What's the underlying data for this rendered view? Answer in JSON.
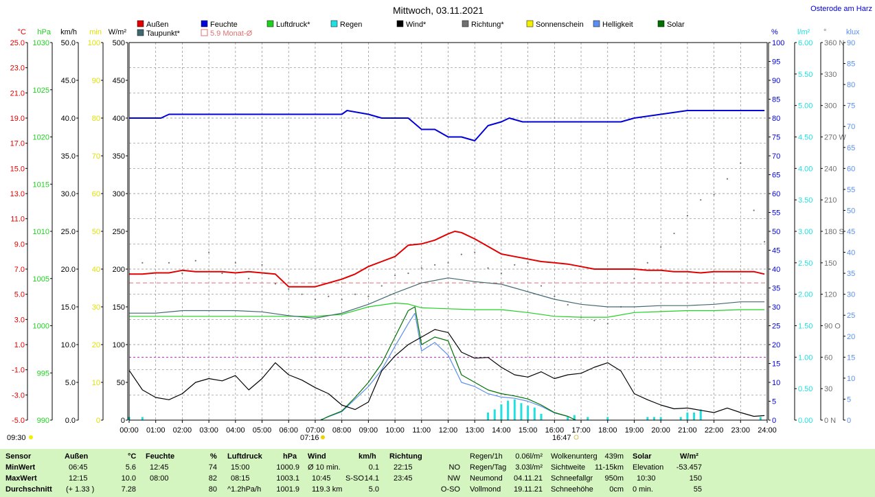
{
  "header": {
    "title": "Mittwoch, 03.11.2021",
    "location": "Osterode am Harz"
  },
  "colors": {
    "aussen": "#e00000",
    "feuchte": "#0000d8",
    "luftdruck": "#20d020",
    "regen": "#20e0e0",
    "wind": "#000000",
    "richtung": "#707070",
    "sonnenschein": "#f0f000",
    "helligkeit": "#5a8ff0",
    "solar": "#007000",
    "taupunkt": "#406870",
    "monat": "#e07070"
  },
  "legend": [
    {
      "label": "Außen",
      "color": "#e00000",
      "fill": true
    },
    {
      "label": "Feuchte",
      "color": "#0000d8",
      "fill": true
    },
    {
      "label": "Luftdruck*",
      "color": "#20d020",
      "fill": true
    },
    {
      "label": "Regen",
      "color": "#20e0e0",
      "fill": true
    },
    {
      "label": "Wind*",
      "color": "#000000",
      "fill": true
    },
    {
      "label": "Richtung*",
      "color": "#707070",
      "fill": true
    },
    {
      "label": "Sonnenschein",
      "color": "#f0f000",
      "fill": true
    },
    {
      "label": "Helligkeit",
      "color": "#5a8ff0",
      "fill": true
    },
    {
      "label": "Solar",
      "color": "#007000",
      "fill": true
    },
    {
      "label": "Taupunkt*",
      "color": "#406870",
      "fill": true
    },
    {
      "label": "5.9 Monat-Ø",
      "color": "#e07070",
      "fill": false
    }
  ],
  "axes_left": [
    {
      "unit": "°C",
      "color": "#e00000",
      "ticks": [
        "25.0",
        "23.0",
        "21.0",
        "19.0",
        "17.0",
        "15.0",
        "13.0",
        "11.0",
        "9.0",
        "7.0",
        "5.0",
        "3.0",
        "1.0",
        "-1.0",
        "-3.0",
        "-5.0"
      ]
    },
    {
      "unit": "hPa",
      "color": "#20d020",
      "ticks": [
        "1030",
        "1025",
        "1020",
        "1015",
        "1010",
        "1005",
        "1000",
        "995",
        "990"
      ]
    },
    {
      "unit": "km/h",
      "color": "#000000",
      "ticks": [
        "50.0",
        "45.0",
        "40.0",
        "35.0",
        "30.0",
        "25.0",
        "20.0",
        "15.0",
        "10.0",
        "5.0",
        "0.0"
      ]
    },
    {
      "unit": "min",
      "color": "#e0e000",
      "ticks": [
        "100",
        "90",
        "80",
        "70",
        "60",
        "50",
        "40",
        "30",
        "20",
        "10",
        "0"
      ]
    },
    {
      "unit": "W/m²",
      "color": "#000000",
      "ticks": [
        "500",
        "450",
        "400",
        "350",
        "300",
        "250",
        "200",
        "150",
        "100",
        "50",
        "0"
      ]
    }
  ],
  "axes_right": [
    {
      "unit": "%",
      "color": "#0000d8",
      "ticks": [
        "100",
        "95",
        "90",
        "85",
        "80",
        "75",
        "70",
        "65",
        "60",
        "55",
        "50",
        "45",
        "40",
        "35",
        "30",
        "25",
        "20",
        "15",
        "10",
        "5",
        "0"
      ]
    },
    {
      "unit": "l/m²",
      "color": "#20e0e0",
      "ticks": [
        "6.00",
        "5.50",
        "5.00",
        "4.50",
        "4.00",
        "3.50",
        "3.00",
        "2.50",
        "2.00",
        "1.50",
        "1.00",
        "0.50",
        "0.00"
      ]
    },
    {
      "unit": "°",
      "color": "#707070",
      "ticks": [
        "360 N",
        "330",
        "300",
        "270 W",
        "240",
        "210",
        "180 S",
        "150",
        "120",
        "90 O",
        "60",
        "30",
        "0 N"
      ]
    },
    {
      "unit": "klux",
      "color": "#5a8ff0",
      "ticks": [
        "90",
        "85",
        "80",
        "75",
        "70",
        "65",
        "60",
        "55",
        "50",
        "45",
        "40",
        "35",
        "30",
        "25",
        "20",
        "15",
        "10",
        "5",
        "0"
      ]
    }
  ],
  "x_ticks": [
    "00:00",
    "01:00",
    "02:00",
    "03:00",
    "04:00",
    "05:00",
    "06:00",
    "07:00",
    "08:00",
    "09:00",
    "10:00",
    "11:00",
    "12:00",
    "13:00",
    "14:00",
    "15:00",
    "16:00",
    "17:00",
    "18:00",
    "19:00",
    "20:00",
    "21:00",
    "22:00",
    "23:00",
    "24:00"
  ],
  "markers": {
    "sunshine_start": "09:30",
    "sunrise": "07:16",
    "sunset": "16:47"
  },
  "chart_data": {
    "type": "line",
    "title": "Mittwoch, 03.11.2021",
    "x_range": [
      "00:00",
      "24:00"
    ],
    "grid": true,
    "series": [
      {
        "name": "Außen",
        "unit": "°C",
        "x": [
          0,
          0.5,
          1,
          1.5,
          2,
          2.5,
          3,
          3.5,
          4,
          4.5,
          5,
          5.5,
          6,
          6.5,
          7,
          7.5,
          8,
          8.5,
          9,
          9.5,
          10,
          10.5,
          11,
          11.5,
          12,
          12.25,
          12.5,
          13,
          13.5,
          14,
          14.5,
          15,
          15.5,
          16,
          16.5,
          17,
          17.5,
          18,
          18.5,
          19,
          19.5,
          20,
          20.5,
          21,
          21.5,
          22,
          22.5,
          23,
          23.5,
          23.9
        ],
        "y": [
          6.6,
          6.6,
          6.7,
          6.7,
          6.9,
          6.8,
          6.8,
          6.8,
          6.7,
          6.8,
          6.7,
          6.6,
          5.6,
          5.6,
          5.6,
          5.9,
          6.2,
          6.6,
          7.2,
          7.6,
          8.0,
          8.9,
          9.0,
          9.3,
          9.8,
          10.0,
          9.9,
          9.4,
          8.8,
          8.2,
          8.0,
          7.8,
          7.6,
          7.5,
          7.4,
          7.2,
          7.0,
          7.0,
          7.0,
          7.0,
          6.9,
          6.9,
          6.8,
          6.8,
          6.7,
          6.8,
          6.8,
          6.8,
          6.8,
          6.6
        ]
      },
      {
        "name": "Feuchte",
        "unit": "%",
        "x": [
          0,
          1.2,
          1.5,
          8,
          8.2,
          9,
          9.5,
          10,
          10.5,
          11,
          11.5,
          12,
          12.5,
          13,
          13.5,
          14,
          14.3,
          14.8,
          15,
          18.5,
          19,
          20,
          21,
          22,
          23.9
        ],
        "y": [
          80,
          80,
          81,
          81,
          82,
          81,
          80,
          80,
          80,
          77,
          77,
          75,
          75,
          74,
          78,
          79,
          80,
          79,
          79,
          79,
          80,
          81,
          82,
          82,
          82
        ]
      },
      {
        "name": "Luftdruck",
        "unit": "hPa",
        "x": [
          0,
          6,
          7,
          8,
          9,
          10,
          10.5,
          11,
          12,
          13,
          14,
          15,
          16,
          17,
          18,
          19,
          20,
          21,
          22,
          23,
          23.9
        ],
        "y": [
          1001.0,
          1001.0,
          1001.0,
          1001.2,
          1002.0,
          1002.4,
          1002.3,
          1001.9,
          1001.8,
          1001.7,
          1001.7,
          1001.4,
          1001.0,
          1000.9,
          1000.9,
          1001.4,
          1001.5,
          1001.6,
          1001.6,
          1001.7,
          1001.7
        ]
      },
      {
        "name": "Taupunkt",
        "unit": "°C",
        "x": [
          0,
          1,
          2,
          3,
          4,
          5,
          6,
          7,
          8,
          9,
          10,
          11,
          12,
          13,
          14,
          15,
          16,
          17,
          18,
          19,
          20,
          21,
          22,
          23,
          23.9
        ],
        "y": [
          3.5,
          3.5,
          3.7,
          3.7,
          3.7,
          3.6,
          3.3,
          3.1,
          3.5,
          4.2,
          5.1,
          5.9,
          6.3,
          6.0,
          5.8,
          5.2,
          4.6,
          4.2,
          4.0,
          4.0,
          4.1,
          4.1,
          4.2,
          4.4,
          4.4
        ]
      },
      {
        "name": "Wind",
        "unit": "km/h",
        "x": [
          0,
          0.5,
          1,
          1.5,
          2,
          2.5,
          3,
          3.5,
          4,
          4.5,
          5,
          5.5,
          6,
          6.5,
          7,
          7.5,
          8,
          8.5,
          9,
          9.5,
          10,
          10.5,
          11,
          11.5,
          12,
          12.5,
          13,
          13.5,
          14,
          14.5,
          15,
          15.5,
          16,
          16.5,
          17,
          17.5,
          18,
          18.5,
          19,
          19.5,
          20,
          20.5,
          21,
          21.5,
          22,
          22.5,
          23,
          23.5,
          23.9
        ],
        "y": [
          6.6,
          4.0,
          3.0,
          2.7,
          3.5,
          5.0,
          5.5,
          5.2,
          5.9,
          4.0,
          5.5,
          7.6,
          6.0,
          5.3,
          4.3,
          3.5,
          2.0,
          1.4,
          2.4,
          6.5,
          8.5,
          10.0,
          11.0,
          12.0,
          11.6,
          9.0,
          8.2,
          8.3,
          7.0,
          6.0,
          5.7,
          6.4,
          5.5,
          6.0,
          6.2,
          7.0,
          7.6,
          6.5,
          3.5,
          2.7,
          2.0,
          1.5,
          1.6,
          1.3,
          1.0,
          1.6,
          1.0,
          0.5,
          0.6
        ]
      },
      {
        "name": "Solar",
        "unit": "W/m²",
        "x": [
          7.2,
          7.5,
          8,
          8.5,
          9,
          9.5,
          10,
          10.5,
          10.75,
          11,
          11.5,
          12,
          12.5,
          13,
          13.5,
          14,
          14.5,
          15,
          15.5,
          16,
          16.5,
          16.8
        ],
        "y": [
          0,
          5,
          12,
          30,
          50,
          75,
          110,
          145,
          150,
          100,
          110,
          105,
          60,
          50,
          40,
          35,
          32,
          28,
          20,
          10,
          5,
          0
        ]
      },
      {
        "name": "Helligkeit",
        "unit": "klux",
        "x": [
          7.2,
          7.5,
          8,
          8.5,
          9,
          9.5,
          10,
          10.5,
          10.75,
          11,
          11.5,
          12,
          12.5,
          13,
          13.5,
          14,
          14.5,
          15,
          15.5,
          16,
          16.5,
          16.8
        ],
        "y": [
          0,
          0.8,
          2,
          5,
          8,
          12,
          17.6,
          23,
          25.5,
          16.5,
          18.5,
          15.5,
          9,
          8,
          6.3,
          5.5,
          5.2,
          4.5,
          3.3,
          1.7,
          0.9,
          0
        ]
      },
      {
        "name": "Richtung",
        "unit": "°",
        "x": [
          0.5,
          1.5,
          2,
          2.5,
          3,
          3.5,
          4,
          4.5,
          5,
          5.5,
          6,
          6.5,
          7,
          7.5,
          8,
          8.5,
          9,
          9.5,
          10,
          10.5,
          11,
          11.5,
          12,
          12.5,
          13,
          13.5,
          14,
          14.5,
          15,
          15.5,
          16,
          16.5,
          17,
          17.5,
          18,
          18.5,
          19,
          19.5,
          20,
          20.5,
          21,
          21.5,
          22,
          22.5,
          23,
          23.5,
          23.9
        ],
        "y": [
          150,
          150,
          140,
          152,
          160,
          140,
          150,
          135,
          148,
          130,
          125,
          120,
          115,
          118,
          115,
          120,
          118,
          128,
          138,
          140,
          145,
          148,
          150,
          158,
          160,
          145,
          140,
          148,
          150,
          128,
          118,
          110,
          98,
          95,
          92,
          108,
          135,
          150,
          165,
          178,
          195,
          210,
          215,
          230,
          245,
          200,
          170
        ]
      }
    ],
    "rain_bars": {
      "name": "Regen",
      "unit": "l/m²",
      "x": [
        0,
        0.5,
        7.25,
        13.5,
        13.75,
        14,
        14.25,
        14.5,
        14.75,
        15,
        15.25,
        15.5,
        16.5,
        16.75,
        17.25,
        18,
        19.5,
        19.75,
        20,
        20.75,
        21,
        21.25,
        21.5,
        23.75
      ],
      "y": [
        0.05,
        0.05,
        0.02,
        0.12,
        0.17,
        0.25,
        0.31,
        0.33,
        0.27,
        0.23,
        0.2,
        0.1,
        0.05,
        0.08,
        0.05,
        0.05,
        0.05,
        0.05,
        0.05,
        0.05,
        0.12,
        0.12,
        0.17,
        0.05
      ]
    },
    "reference_lines": [
      {
        "name": "5.9 Monat-Ø",
        "unit": "°C",
        "value": 5.9
      },
      {
        "name": "1.00 l/m²",
        "unit": "l/m²",
        "value": 1.0
      }
    ]
  },
  "table": {
    "sensor": {
      "header": "Sensor",
      "rows": [
        "MinWert",
        "MaxWert",
        "Durchschnitt"
      ]
    },
    "aussen": {
      "header": "Außen",
      "unit": "°C",
      "times": [
        "06:45",
        "12:15",
        "(+ 1.33 )"
      ],
      "values": [
        "5.6",
        "10.0",
        "7.28"
      ]
    },
    "feuchte": {
      "header": "Feuchte",
      "unit": "%",
      "times": [
        "12:45",
        "08:00",
        ""
      ],
      "values": [
        "74",
        "82",
        "80"
      ]
    },
    "luftdruck": {
      "header": "Luftdruck",
      "unit": "hPa",
      "times": [
        "15:00",
        "08:15",
        "^1.2hPa/h"
      ],
      "values": [
        "1000.9",
        "1003.1",
        "1001.9"
      ]
    },
    "wind": {
      "header": "Wind",
      "unit": "km/h",
      "labels": [
        "Ø 10 min.",
        "10:45",
        "119.3 km"
      ],
      "dirs": [
        "",
        "S-SO",
        ""
      ],
      "values": [
        "0.1",
        "14.1",
        "5.0"
      ]
    },
    "richtung": {
      "header": "Richtung",
      "times": [
        "22:15",
        "23:45",
        ""
      ],
      "values": [
        "NO",
        "NW",
        "O-SO"
      ]
    },
    "regen": {
      "rows": [
        [
          "Regen/1h",
          "0.06l/m²"
        ],
        [
          "Regen/Tag",
          "3.03l/m²"
        ],
        [
          "Neumond",
          "04.11.21"
        ],
        [
          "Vollmond",
          "19.11.21"
        ]
      ]
    },
    "wolken": {
      "rows": [
        [
          "Wolkenunterg",
          "439m"
        ],
        [
          "Sichtweite",
          "11-15km"
        ],
        [
          "Schneefallgr",
          "950m"
        ],
        [
          "Schneehöhe",
          "0cm"
        ]
      ]
    },
    "solar": {
      "header": "Solar",
      "unit": "W/m²",
      "rows": [
        [
          "Elevation",
          "-53.457"
        ],
        [
          "10:30",
          "150"
        ],
        [
          "0 min.",
          "55"
        ]
      ]
    }
  }
}
